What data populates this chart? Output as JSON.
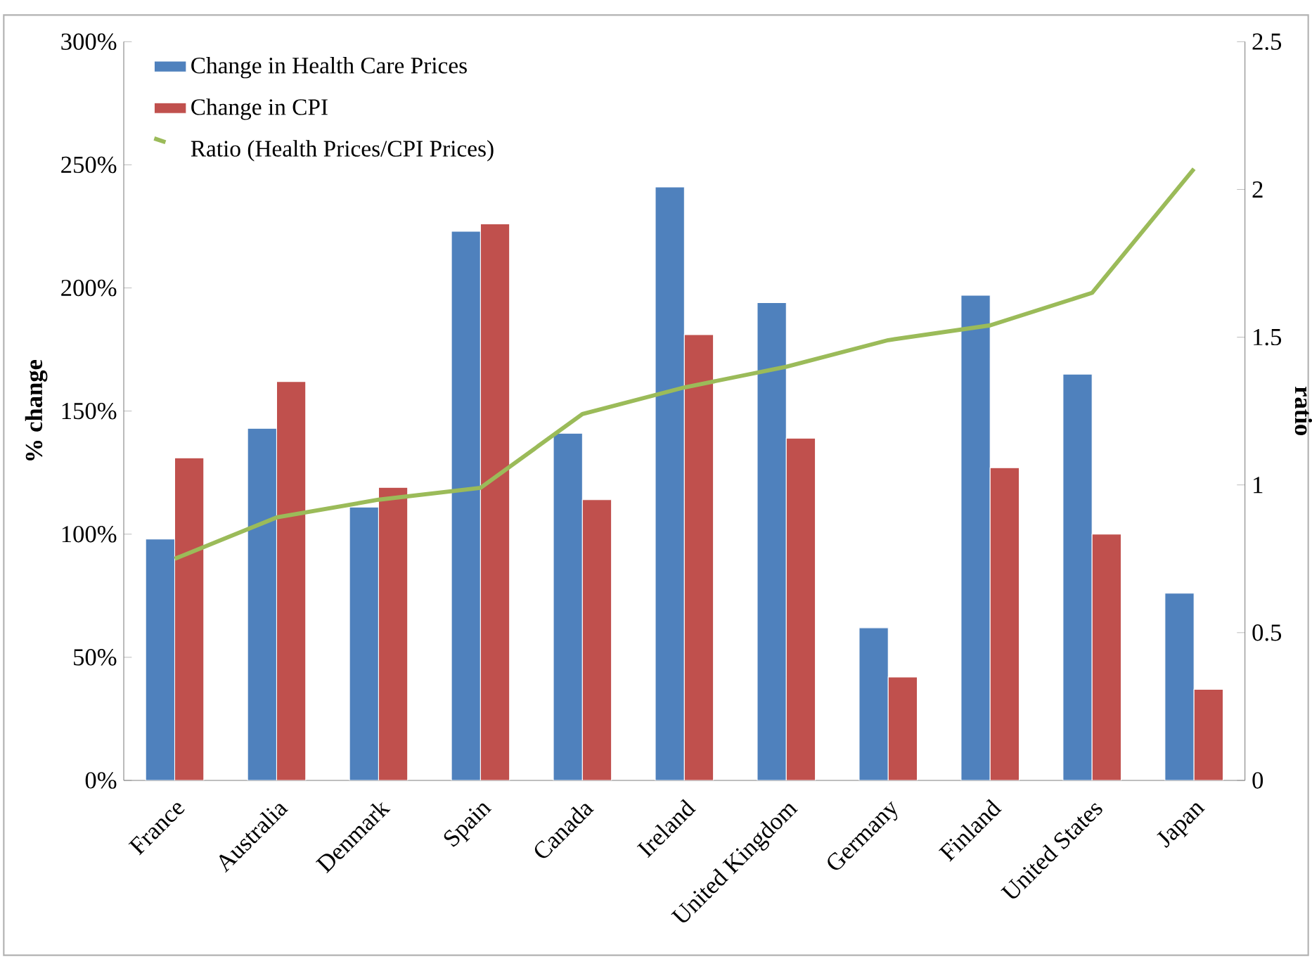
{
  "chart_data": {
    "type": "bar",
    "categories": [
      "France",
      "Australia",
      "Denmark",
      "Spain",
      "Canada",
      "Ireland",
      "United Kingdom",
      "Germany",
      "Finland",
      "United States",
      "Japan"
    ],
    "series": [
      {
        "name": "Change in Health Care Prices",
        "color": "#4f81bd",
        "values": [
          98,
          143,
          111,
          223,
          141,
          241,
          194,
          62,
          197,
          165,
          76
        ]
      },
      {
        "name": "Change in CPI",
        "color": "#c0504d",
        "values": [
          131,
          162,
          119,
          226,
          114,
          181,
          139,
          42,
          127,
          100,
          37
        ]
      },
      {
        "name": "Ratio (Health Prices/CPI Prices)",
        "type": "line",
        "axis": "y2",
        "color": "#9bbb59",
        "values": [
          0.75,
          0.89,
          0.95,
          0.99,
          1.24,
          1.33,
          1.4,
          1.49,
          1.54,
          1.65,
          2.07
        ]
      }
    ],
    "ylabel": "% change",
    "y2label": "ratio",
    "ylim": [
      0,
      300
    ],
    "yticks": [
      {
        "value": 0,
        "label": "0%"
      },
      {
        "value": 50,
        "label": "50%"
      },
      {
        "value": 100,
        "label": "100%"
      },
      {
        "value": 150,
        "label": "150%"
      },
      {
        "value": 200,
        "label": "200%"
      },
      {
        "value": 250,
        "label": "250%"
      },
      {
        "value": 300,
        "label": "300%"
      }
    ],
    "y2lim": [
      0,
      2.5
    ],
    "y2ticks": [
      0,
      0.5,
      1,
      1.5,
      2,
      2.5
    ],
    "legend": "top left",
    "marker": "none",
    "line_style": "solid"
  }
}
